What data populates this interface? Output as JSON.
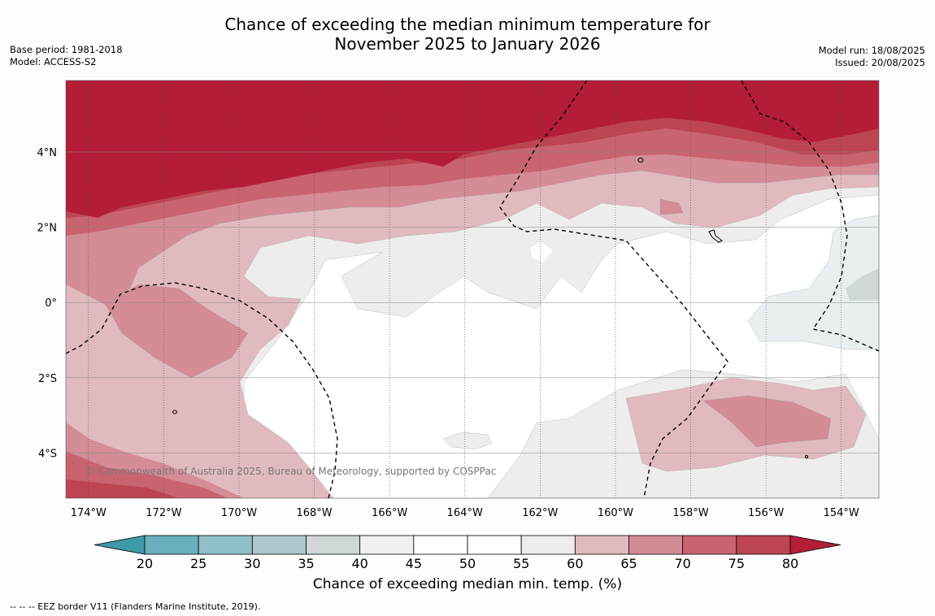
{
  "title_line1": "Chance of exceeding the median minimum temperature for",
  "title_line2": "November 2025 to January 2026",
  "meta_left": [
    "Base period: 1981-2018",
    "Model: ACCESS-S2"
  ],
  "meta_right": [
    "Model run: 18/08/2025",
    "Issued: 20/08/2025"
  ],
  "map": {
    "lon_range": [
      -174.6,
      -153.0
    ],
    "lat_range": [
      -5.2,
      5.9
    ],
    "lon_ticks": [
      "174°W",
      "172°W",
      "170°W",
      "168°W",
      "166°W",
      "164°W",
      "162°W",
      "160°W",
      "158°W",
      "156°W",
      "154°W"
    ],
    "lon_tick_values": [
      -174,
      -172,
      -170,
      -168,
      -166,
      -164,
      -162,
      -160,
      -158,
      -156,
      -154
    ],
    "lat_ticks": [
      "4°N",
      "2°N",
      "0°",
      "2°S",
      "4°S"
    ],
    "lat_tick_values": [
      4,
      2,
      0,
      -2,
      -4
    ],
    "copyright": "© Commonwealth of Australia 2025, Bureau of Meteorology, supported by COSPPac"
  },
  "colorbar": {
    "label": "Chance of exceeding median min. temp. (%)",
    "ticks": [
      "20",
      "25",
      "30",
      "35",
      "40",
      "45",
      "50",
      "55",
      "60",
      "65",
      "70",
      "75",
      "80"
    ],
    "colors": [
      "#3e9aa8",
      "#6aafbd",
      "#8fbfc8",
      "#adc8cc",
      "#d0d7d8",
      "#edf1f2",
      "#ffffff",
      "#ffffff",
      "#eeedec",
      "#e1bac0",
      "#d48c97",
      "#c96370",
      "#bd4553",
      "#b31d38"
    ]
  },
  "footnote": "--  --  -- EEZ border V11 (Flanders Marine Institute, 2019)."
}
